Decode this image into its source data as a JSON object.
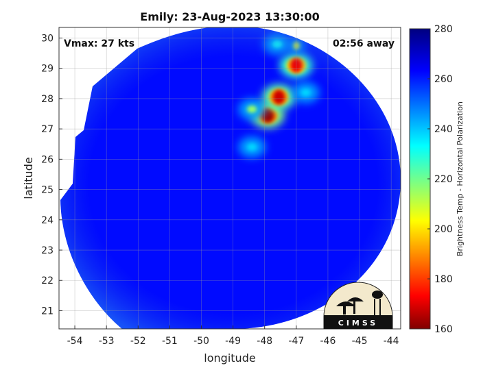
{
  "chart_data": {
    "type": "heatmap",
    "title": "Emily: 23-Aug-2023 13:30:00",
    "xlabel": "longitude",
    "ylabel": "latitude",
    "xlim": [
      -54.5,
      -43.7
    ],
    "ylim": [
      20.4,
      30.35
    ],
    "x_ticks": [
      -54,
      -53,
      -52,
      -51,
      -50,
      -49,
      -48,
      -47,
      -46,
      -45,
      -44
    ],
    "y_ticks": [
      21,
      22,
      23,
      24,
      25,
      26,
      27,
      28,
      29,
      30
    ],
    "grid": true,
    "annotations": [
      {
        "text": "Vmax: 27 kts",
        "position": "top-left"
      },
      {
        "text": "02:56 away",
        "position": "top-right"
      }
    ],
    "colorbar": {
      "label": "Brightness Temp - Horizontal Polarization",
      "min": 160,
      "max": 280,
      "ticks": [
        160,
        180,
        200,
        220,
        240,
        260,
        280
      ],
      "colormap": "jet",
      "position": "right"
    },
    "background_value": 262,
    "features": [
      {
        "type": "cold cloud core",
        "lon": -47.9,
        "lat": 27.45,
        "value": 163
      },
      {
        "type": "cold cloud core",
        "lon": -47.55,
        "lat": 28.05,
        "value": 168
      },
      {
        "type": "cold cloud core",
        "lon": -47.0,
        "lat": 29.1,
        "value": 172
      },
      {
        "type": "cold cloud core",
        "lon": -47.0,
        "lat": 29.75,
        "value": 205
      },
      {
        "type": "convective band",
        "lon": -48.4,
        "lat": 27.65,
        "value": 215
      },
      {
        "type": "convective band",
        "lon": -47.6,
        "lat": 29.8,
        "value": 232
      },
      {
        "type": "convective band",
        "lon": -46.7,
        "lat": 28.2,
        "value": 238
      },
      {
        "type": "convective band",
        "lon": -48.4,
        "lat": 26.4,
        "value": 238
      }
    ]
  },
  "logo": {
    "text": "CIMSS",
    "name": "CIMSS"
  }
}
